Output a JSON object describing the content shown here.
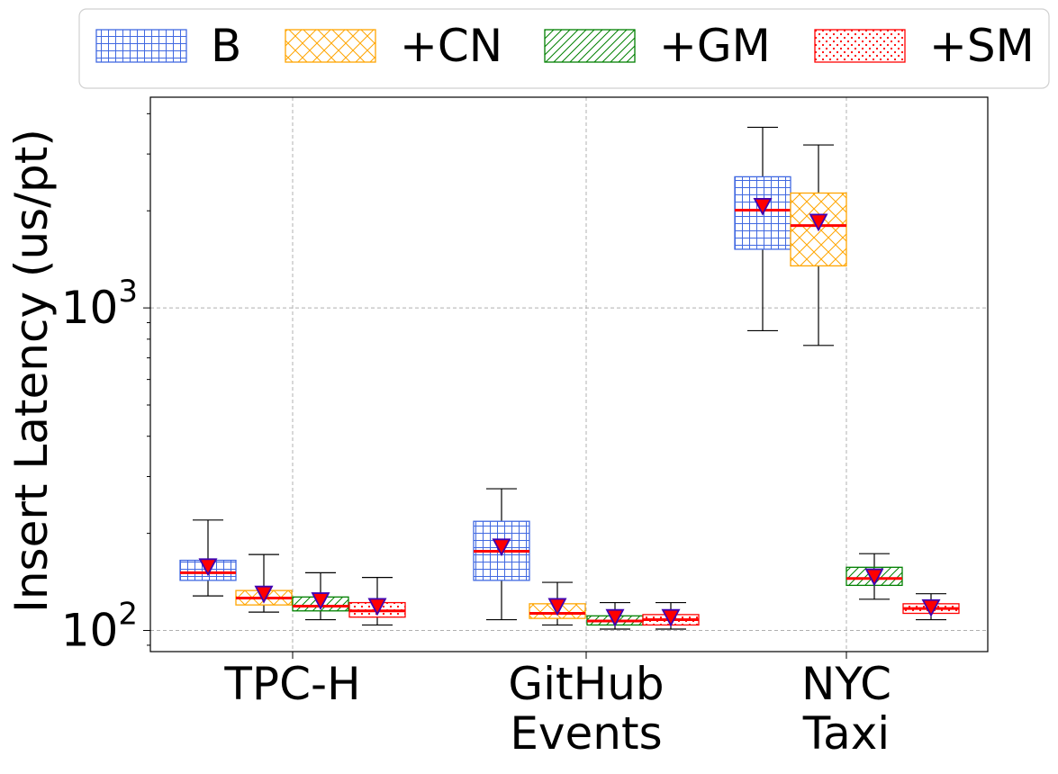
{
  "chart_data": {
    "type": "box",
    "ylabel": "Insert Latency (us/pt)",
    "yscale": "log",
    "ylim": [
      86,
      4500
    ],
    "yticks": [
      {
        "value": 100,
        "base": "10",
        "exp": "2"
      },
      {
        "value": 1000,
        "base": "10",
        "exp": "3"
      }
    ],
    "grid": true,
    "legend_position": "top",
    "categories": [
      {
        "lines": [
          "TPC-H"
        ]
      },
      {
        "lines": [
          "GitHub",
          "Events"
        ]
      },
      {
        "lines": [
          "NYC",
          "Taxi"
        ]
      }
    ],
    "series": [
      {
        "name": "B",
        "color": "#4169e1",
        "hatch": "grid",
        "boxes": [
          {
            "whislo": 128,
            "q1": 143,
            "med": 151,
            "q3": 165,
            "whishi": 220,
            "mean": 158
          },
          {
            "whislo": 108,
            "q1": 143,
            "med": 176,
            "q3": 218,
            "whishi": 275,
            "mean": 182
          },
          {
            "whislo": 850,
            "q1": 1520,
            "med": 2010,
            "q3": 2550,
            "whishi": 3630,
            "mean": 2070
          }
        ]
      },
      {
        "name": "+CN",
        "color": "#ffa500",
        "hatch": "crosshatch",
        "boxes": [
          {
            "whislo": 114,
            "q1": 120,
            "med": 126,
            "q3": 133,
            "whishi": 172,
            "mean": 130
          },
          {
            "whislo": 104,
            "q1": 109,
            "med": 113,
            "q3": 121,
            "whishi": 141,
            "mean": 119
          },
          {
            "whislo": 765,
            "q1": 1350,
            "med": 1800,
            "q3": 2270,
            "whishi": 3200,
            "mean": 1850
          }
        ]
      },
      {
        "name": "+GM",
        "color": "#008000",
        "hatch": "diagonal",
        "boxes": [
          {
            "whislo": 108,
            "q1": 115,
            "med": 119,
            "q3": 127,
            "whishi": 151,
            "mean": 124
          },
          {
            "whislo": 101,
            "q1": 104,
            "med": 107,
            "q3": 111,
            "whishi": 122,
            "mean": 110
          },
          null
        ]
      },
      {
        "name": "+SM",
        "color": "#ff0000",
        "hatch": "dots",
        "boxes": [
          {
            "whislo": 104,
            "q1": 110,
            "med": 115,
            "q3": 122,
            "whishi": 146,
            "mean": 119
          },
          {
            "whislo": 101,
            "q1": 104,
            "med": 108,
            "q3": 112,
            "whishi": 122,
            "mean": 110
          },
          {
            "whislo": 108,
            "q1": 113,
            "med": 117,
            "q3": 121,
            "whishi": 130,
            "mean": 118
          }
        ]
      },
      {
        "name": "",
        "color": "#008000",
        "hatch": "diagonal",
        "legend": false,
        "boxes": [
          null,
          null,
          {
            "whislo": 125,
            "q1": 138,
            "med": 145,
            "q3": 157,
            "whishi": 173,
            "mean": 147
          }
        ]
      }
    ]
  }
}
